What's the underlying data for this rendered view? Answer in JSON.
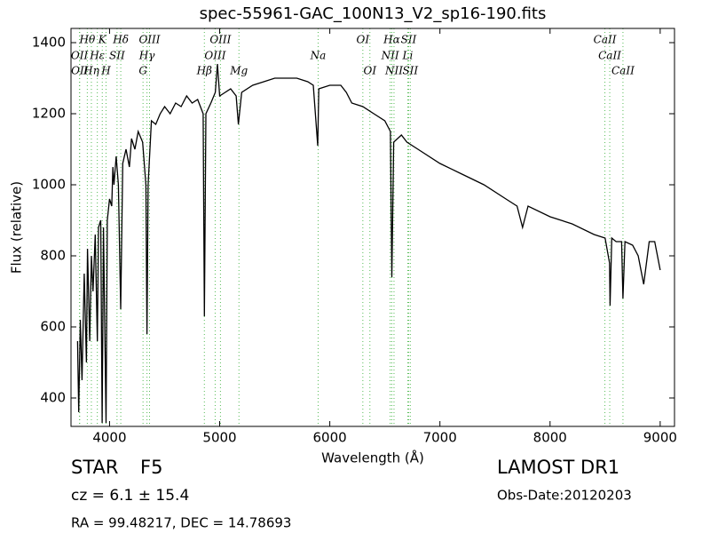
{
  "chart_data": {
    "type": "line",
    "title": "spec-55961-GAC_100N13_V2_sp16-190.fits",
    "x_label": "Wavelength (Å)",
    "y_label": "Flux (relative)",
    "xlim": [
      3650,
      9130
    ],
    "ylim": [
      320,
      1440
    ],
    "xticks": [
      4000,
      5000,
      6000,
      7000,
      8000,
      9000
    ],
    "yticks": [
      400,
      600,
      800,
      1000,
      1200,
      1400
    ],
    "x": [
      3710,
      3720,
      3735,
      3750,
      3770,
      3790,
      3800,
      3820,
      3835,
      3850,
      3870,
      3889,
      3900,
      3920,
      3933,
      3945,
      3968,
      3980,
      4000,
      4020,
      4030,
      4040,
      4060,
      4080,
      4101,
      4120,
      4150,
      4180,
      4200,
      4230,
      4260,
      4300,
      4330,
      4340,
      4350,
      4380,
      4420,
      4460,
      4500,
      4550,
      4600,
      4650,
      4700,
      4750,
      4800,
      4850,
      4861,
      4875,
      4920,
      4960,
      4980,
      5000,
      5050,
      5100,
      5150,
      5170,
      5200,
      5300,
      5400,
      5500,
      5600,
      5700,
      5800,
      5850,
      5890,
      5900,
      6000,
      6100,
      6150,
      6200,
      6300,
      6400,
      6500,
      6550,
      6563,
      6580,
      6650,
      6700,
      6800,
      7000,
      7200,
      7400,
      7600,
      7700,
      7750,
      7800,
      8000,
      8200,
      8400,
      8500,
      8540,
      8545,
      8560,
      8600,
      8650,
      8662,
      8680,
      8750,
      8800,
      8850,
      8900,
      8950,
      9000
    ],
    "series": [
      {
        "color": "#000000",
        "values": [
          560,
          360,
          620,
          450,
          750,
          500,
          820,
          560,
          800,
          700,
          860,
          560,
          880,
          900,
          330,
          880,
          330,
          900,
          960,
          940,
          1050,
          1000,
          1080,
          1000,
          650,
          1060,
          1100,
          1050,
          1130,
          1100,
          1150,
          1120,
          1000,
          580,
          1000,
          1180,
          1170,
          1200,
          1220,
          1200,
          1230,
          1220,
          1250,
          1230,
          1240,
          1200,
          630,
          1200,
          1230,
          1260,
          1340,
          1250,
          1260,
          1270,
          1250,
          1170,
          1260,
          1280,
          1290,
          1300,
          1300,
          1300,
          1290,
          1280,
          1110,
          1270,
          1280,
          1280,
          1260,
          1230,
          1220,
          1200,
          1180,
          1150,
          740,
          1120,
          1140,
          1120,
          1100,
          1060,
          1030,
          1000,
          960,
          940,
          880,
          940,
          910,
          890,
          860,
          850,
          780,
          660,
          850,
          840,
          840,
          680,
          840,
          830,
          800,
          720,
          840,
          840,
          760
        ]
      }
    ],
    "line_color": "#55bb55",
    "spectral_lines": [
      {
        "name": "OII",
        "wavelength": 3727,
        "row": 1
      },
      {
        "name": "OII",
        "wavelength": 3729,
        "row": 2
      },
      {
        "name": "Hθ",
        "wavelength": 3798,
        "row": 0
      },
      {
        "name": "Hη",
        "wavelength": 3835,
        "row": 2
      },
      {
        "name": "Hε",
        "wavelength": 3889,
        "row": 1
      },
      {
        "name": "K",
        "wavelength": 3934,
        "row": 0
      },
      {
        "name": "H",
        "wavelength": 3968,
        "row": 2
      },
      {
        "name": "SII",
        "wavelength": 4068,
        "row": 1
      },
      {
        "name": "Hδ",
        "wavelength": 4102,
        "row": 0
      },
      {
        "name": "G",
        "wavelength": 4304,
        "row": 2
      },
      {
        "name": "Hγ",
        "wavelength": 4340,
        "row": 1
      },
      {
        "name": "OIII",
        "wavelength": 4363,
        "row": 0
      },
      {
        "name": "Hβ",
        "wavelength": 4861,
        "row": 2
      },
      {
        "name": "OIII",
        "wavelength": 4959,
        "row": 1
      },
      {
        "name": "OIII",
        "wavelength": 5007,
        "row": 0
      },
      {
        "name": "Mg",
        "wavelength": 5175,
        "row": 2
      },
      {
        "name": "Na",
        "wavelength": 5894,
        "row": 1
      },
      {
        "name": "OI",
        "wavelength": 6300,
        "row": 0
      },
      {
        "name": "OI",
        "wavelength": 6364,
        "row": 2
      },
      {
        "name": "NII",
        "wavelength": 6548,
        "row": 1
      },
      {
        "name": "Hα",
        "wavelength": 6563,
        "row": 0
      },
      {
        "name": "NII",
        "wavelength": 6583,
        "row": 2
      },
      {
        "name": "Li",
        "wavelength": 6708,
        "row": 1
      },
      {
        "name": "SII",
        "wavelength": 6716,
        "row": 0
      },
      {
        "name": "SII",
        "wavelength": 6731,
        "row": 2
      },
      {
        "name": "CaII",
        "wavelength": 8498,
        "row": 0
      },
      {
        "name": "CaII",
        "wavelength": 8542,
        "row": 1
      },
      {
        "name": "CaII",
        "wavelength": 8662,
        "row": 2
      }
    ],
    "footer": {
      "object_class": "STAR",
      "subclass": "F5",
      "cz": "cz = 6.1 ± 15.4",
      "coords": "RA = 99.48217, DEC = 14.78693",
      "survey": "LAMOST DR1",
      "obs_date": "Obs-Date:20120203"
    }
  }
}
